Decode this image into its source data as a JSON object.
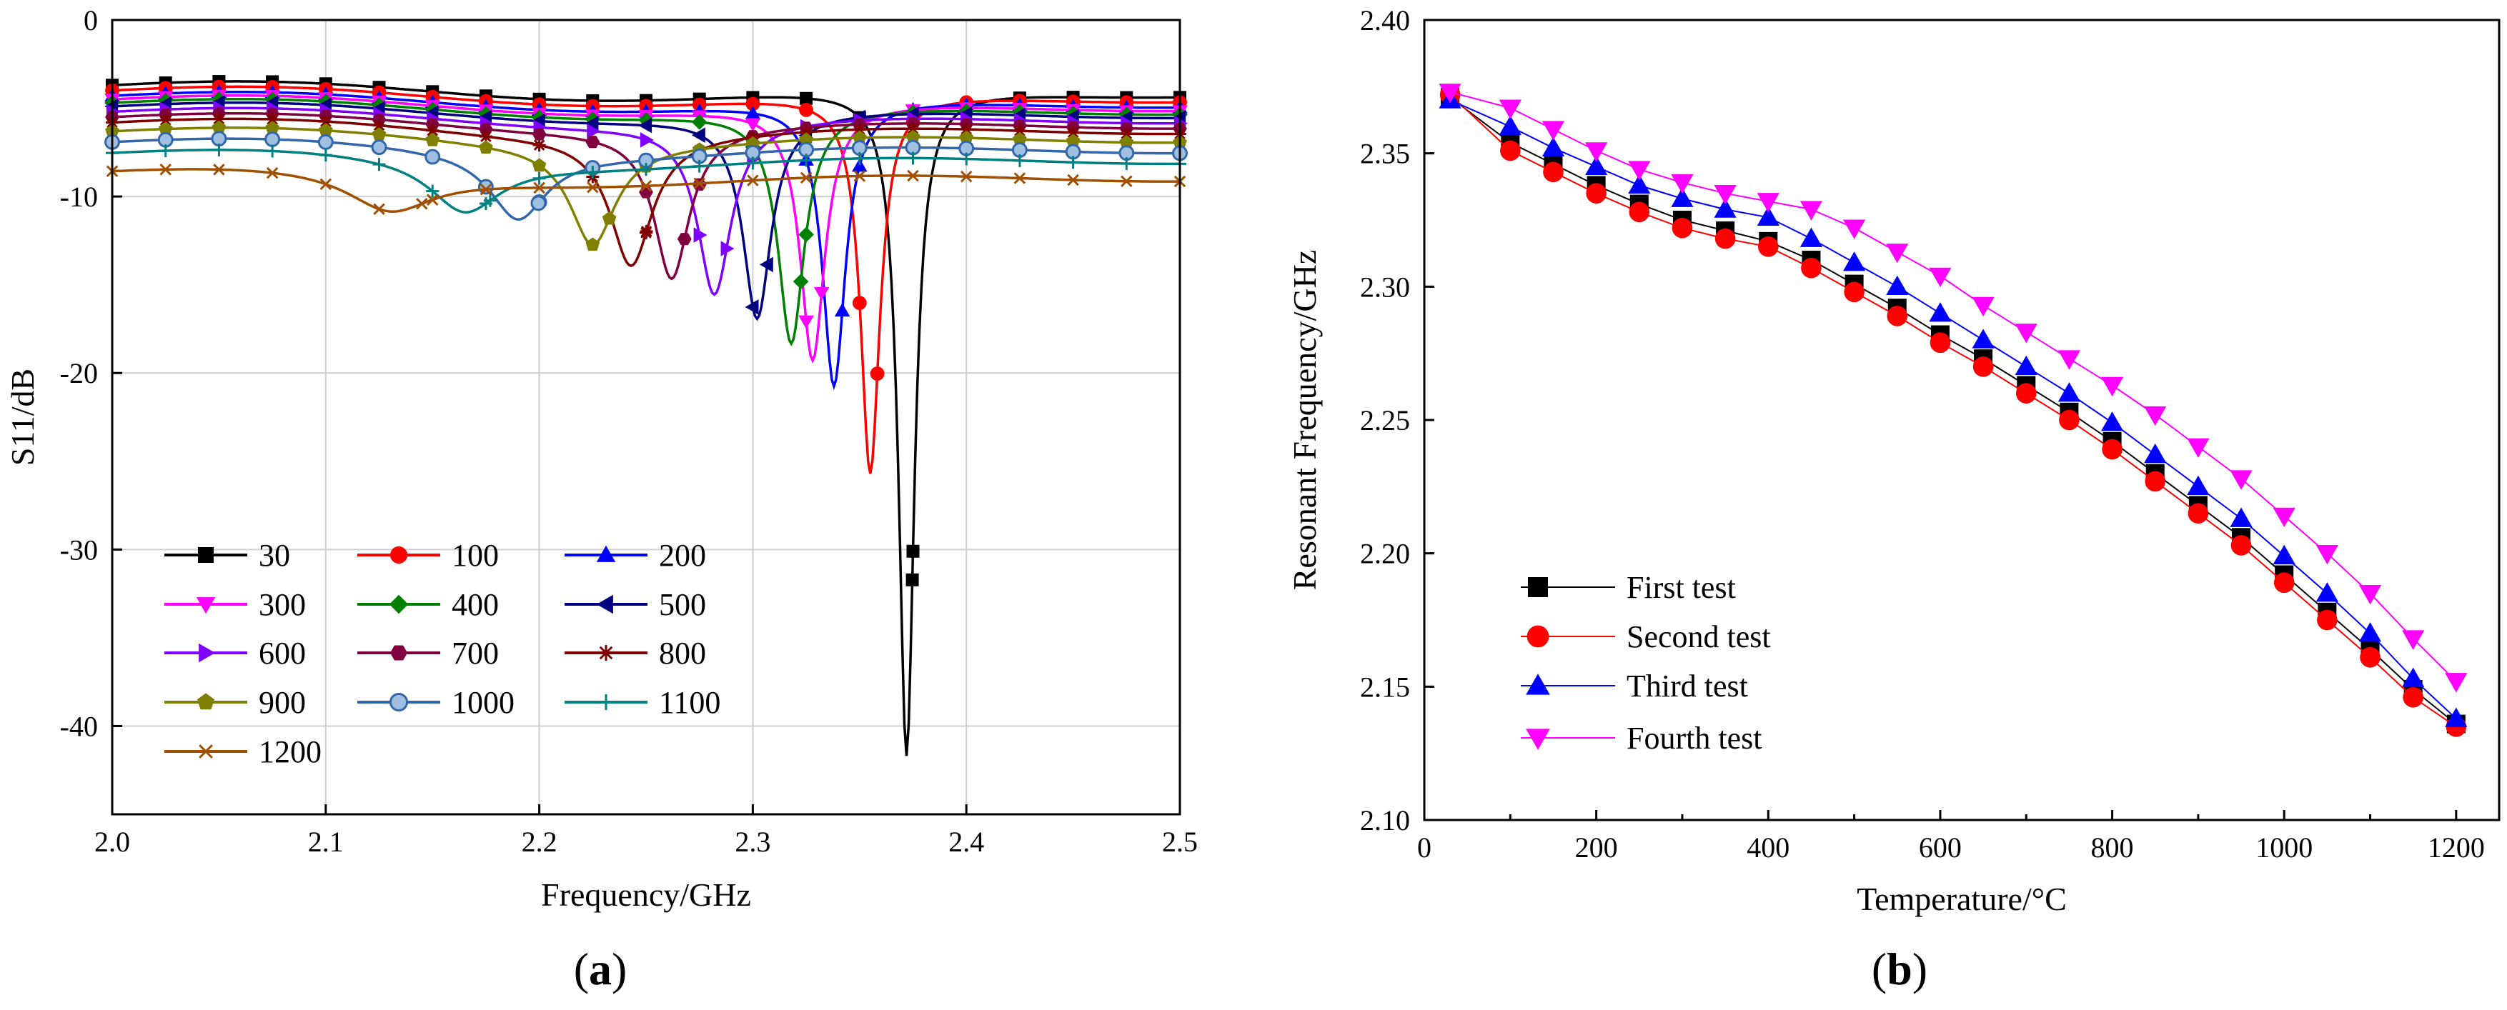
{
  "chart_data": [
    {
      "panel": "(a)",
      "type": "line",
      "xlabel": "Frequency/GHz",
      "ylabel": "S11/dB",
      "xlim": [
        2.0,
        2.5
      ],
      "ylim": [
        -45,
        0
      ],
      "xticks": [
        2.0,
        2.1,
        2.2,
        2.3,
        2.4,
        2.5
      ],
      "yticks": [
        0,
        -10,
        -20,
        -30,
        -40
      ],
      "grid": true,
      "legend_placement": "bottom-left",
      "series": [
        {
          "name": "30",
          "color": "#000000",
          "marker": "square",
          "f0": 2.372,
          "depth": -41.5,
          "width": 0.0045,
          "base": -3.8
        },
        {
          "name": "100",
          "color": "#ff0000",
          "marker": "circle",
          "f0": 2.355,
          "depth": -25.5,
          "width": 0.0055,
          "base": -4.1
        },
        {
          "name": "200",
          "color": "#0000ff",
          "marker": "triangle-up",
          "f0": 2.338,
          "depth": -20.5,
          "width": 0.0065,
          "base": -4.4
        },
        {
          "name": "300",
          "color": "#ff00ff",
          "marker": "triangle-down",
          "f0": 2.328,
          "depth": -19.0,
          "width": 0.007,
          "base": -4.6
        },
        {
          "name": "400",
          "color": "#008000",
          "marker": "diamond",
          "f0": 2.318,
          "depth": -18.0,
          "width": 0.0075,
          "base": -4.8
        },
        {
          "name": "500",
          "color": "#000080",
          "marker": "triangle-left",
          "f0": 2.302,
          "depth": -16.5,
          "width": 0.008,
          "base": -5.0
        },
        {
          "name": "600",
          "color": "#8000ff",
          "marker": "triangle-right",
          "f0": 2.282,
          "depth": -15.0,
          "width": 0.0095,
          "base": -5.3
        },
        {
          "name": "700",
          "color": "#800040",
          "marker": "hexagon",
          "f0": 2.262,
          "depth": -14.0,
          "width": 0.01,
          "base": -5.6
        },
        {
          "name": "800",
          "color": "#800000",
          "marker": "star",
          "f0": 2.243,
          "depth": -13.2,
          "width": 0.012,
          "base": -5.9
        },
        {
          "name": "900",
          "color": "#808000",
          "marker": "pentagon",
          "f0": 2.225,
          "depth": -12.0,
          "width": 0.013,
          "base": -6.4
        },
        {
          "name": "1000",
          "color": "#3366aa",
          "marker": "circle-open",
          "f0": 2.19,
          "depth": -10.7,
          "width": 0.016,
          "base": -7.0
        },
        {
          "name": "1100",
          "color": "#008080",
          "marker": "plus",
          "f0": 2.165,
          "depth": -10.5,
          "width": 0.02,
          "base": -7.6
        },
        {
          "name": "1200",
          "color": "#a05000",
          "marker": "x",
          "f0": 2.13,
          "depth": -10.8,
          "width": 0.025,
          "base": -8.6
        }
      ]
    },
    {
      "panel": "(b)",
      "type": "line",
      "xlabel": "Temperature/°C",
      "ylabel": "Resonant Frequency/GHz",
      "xlim": [
        0,
        1250
      ],
      "ylim": [
        2.1,
        2.4
      ],
      "xticks": [
        0,
        200,
        400,
        600,
        800,
        1000,
        1200
      ],
      "yticks": [
        2.1,
        2.15,
        2.2,
        2.25,
        2.3,
        2.35,
        2.4
      ],
      "grid": false,
      "legend_placement": "bottom-left",
      "x": [
        30,
        100,
        150,
        200,
        250,
        300,
        350,
        400,
        450,
        500,
        550,
        600,
        650,
        700,
        750,
        800,
        850,
        900,
        950,
        1000,
        1050,
        1100,
        1150,
        1200
      ],
      "series": [
        {
          "name": "First test",
          "color": "#000000",
          "marker": "square",
          "values": [
            2.371,
            2.354,
            2.346,
            2.338,
            2.331,
            2.325,
            2.321,
            2.317,
            2.31,
            2.301,
            2.292,
            2.282,
            2.273,
            2.263,
            2.253,
            2.242,
            2.23,
            2.218,
            2.206,
            2.192,
            2.178,
            2.164,
            2.149,
            2.136
          ]
        },
        {
          "name": "Second test",
          "color": "#ff0000",
          "marker": "circle",
          "values": [
            2.372,
            2.351,
            2.343,
            2.335,
            2.328,
            2.322,
            2.318,
            2.315,
            2.307,
            2.298,
            2.289,
            2.279,
            2.27,
            2.26,
            2.25,
            2.239,
            2.227,
            2.215,
            2.203,
            2.189,
            2.175,
            2.161,
            2.146,
            2.135
          ]
        },
        {
          "name": "Third test",
          "color": "#0000ff",
          "marker": "triangle-up",
          "values": [
            2.37,
            2.36,
            2.352,
            2.345,
            2.338,
            2.333,
            2.329,
            2.326,
            2.318,
            2.309,
            2.3,
            2.29,
            2.28,
            2.27,
            2.26,
            2.249,
            2.237,
            2.225,
            2.213,
            2.199,
            2.185,
            2.17,
            2.153,
            2.138
          ]
        },
        {
          "name": "Fourth test",
          "color": "#ff00ff",
          "marker": "triangle-down",
          "values": [
            2.373,
            2.367,
            2.359,
            2.351,
            2.344,
            2.339,
            2.335,
            2.332,
            2.329,
            2.322,
            2.313,
            2.304,
            2.293,
            2.283,
            2.273,
            2.263,
            2.252,
            2.24,
            2.228,
            2.214,
            2.2,
            2.185,
            2.168,
            2.152
          ]
        }
      ]
    }
  ],
  "panel_labels": {
    "a_open": "(",
    "a_letter": "a",
    "a_close": ")",
    "b_open": "(",
    "b_letter": "b",
    "b_close": ")"
  }
}
